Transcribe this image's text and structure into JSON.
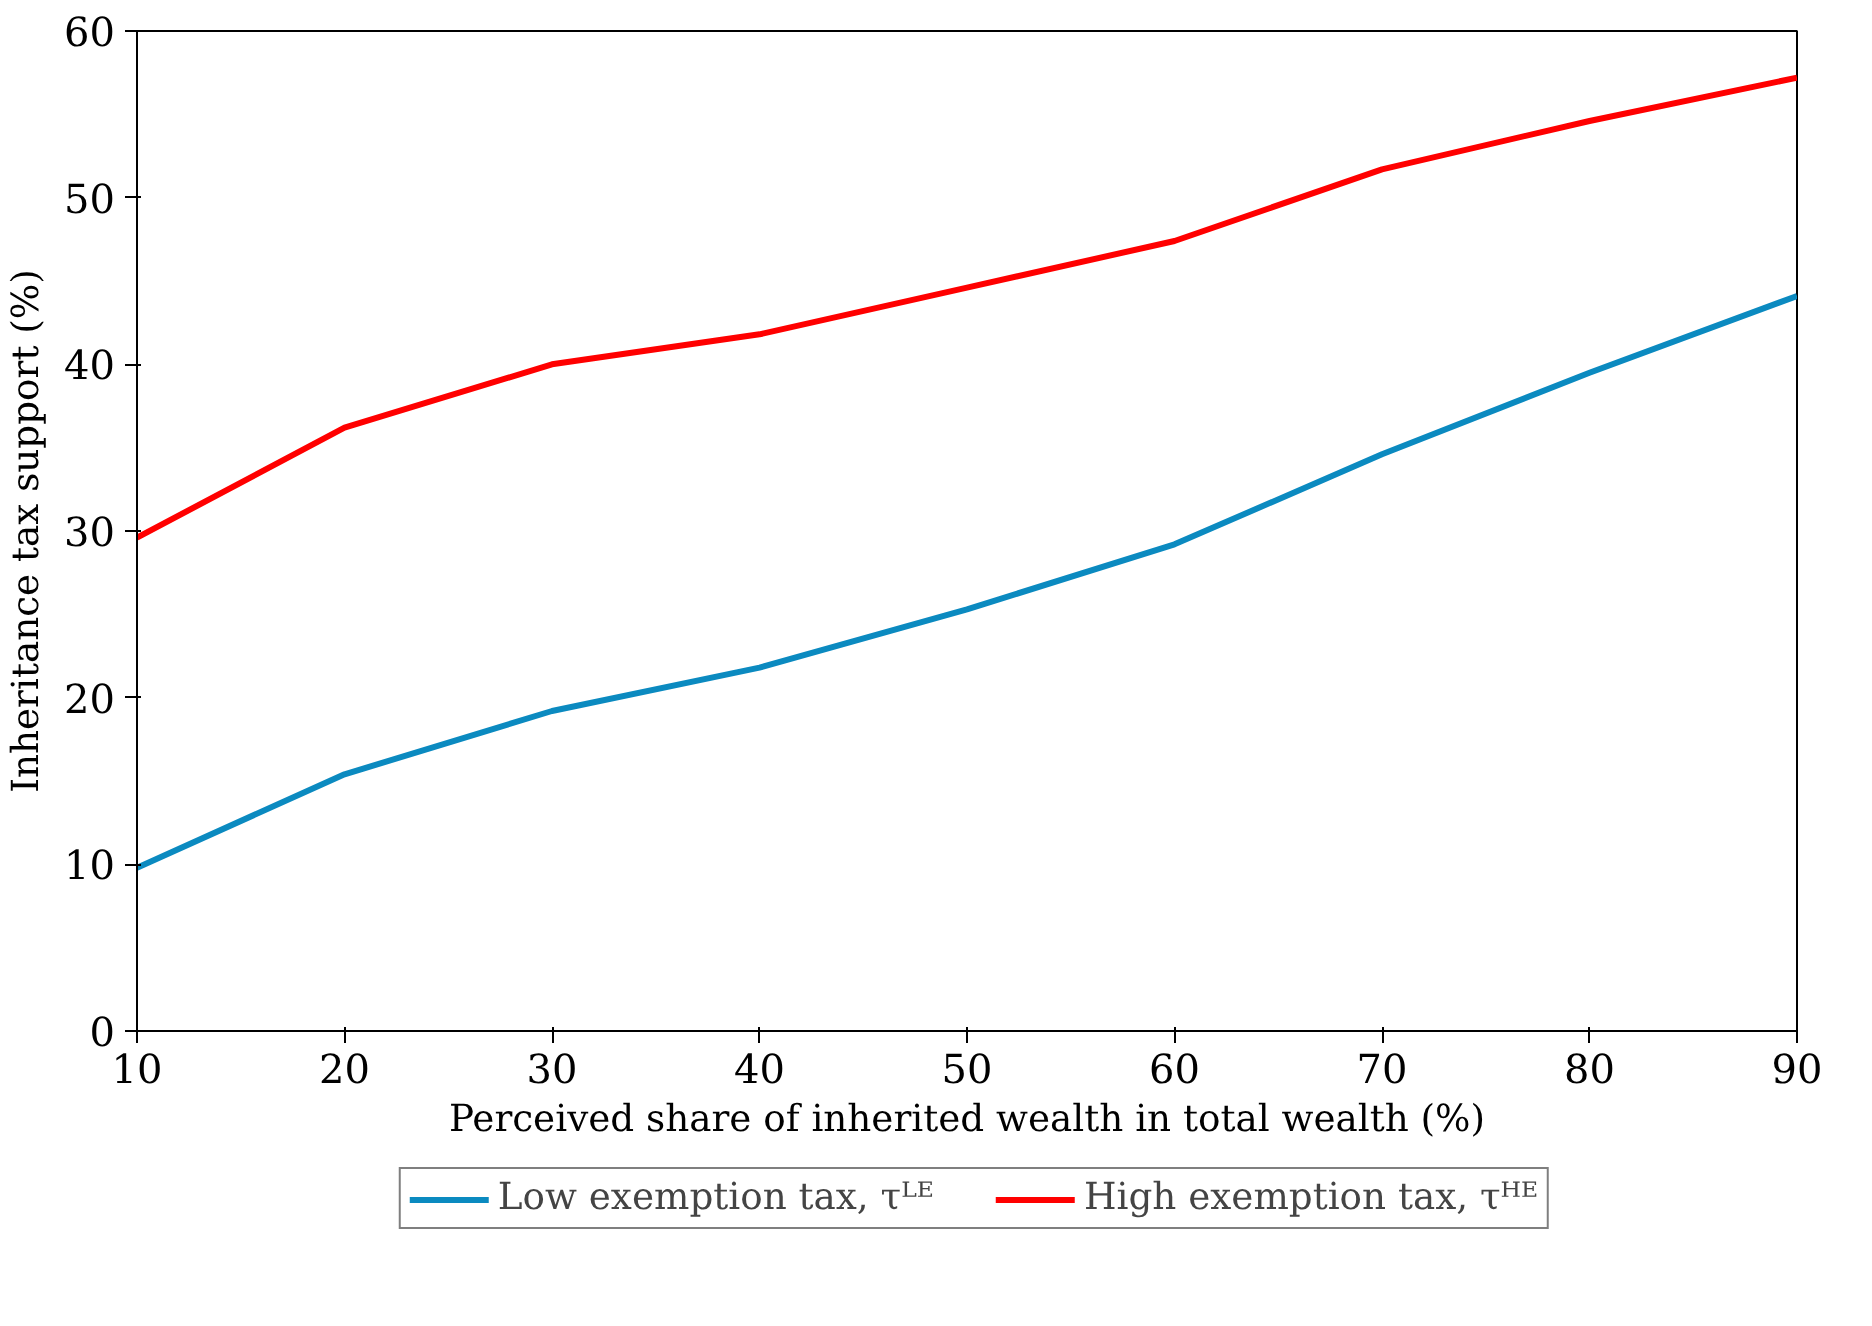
{
  "chart_data": {
    "type": "line",
    "xlabel": "Perceived share of inherited wealth in total wealth (%)",
    "ylabel": "Inheritance tax support (%)",
    "x": [
      10,
      20,
      30,
      40,
      50,
      60,
      70,
      80,
      90
    ],
    "series": [
      {
        "name": "Low exemption tax, τᴸᴱ",
        "color": "#0b8ac0",
        "values": [
          9.8,
          15.4,
          19.2,
          21.8,
          25.3,
          29.2,
          34.6,
          39.5,
          44.1
        ]
      },
      {
        "name": "High exemption tax, τᴴᴱ",
        "color": "#ff0000",
        "values": [
          29.6,
          36.2,
          40.0,
          41.8,
          44.6,
          47.4,
          51.7,
          54.6,
          57.2
        ]
      }
    ],
    "xlim": [
      10,
      90
    ],
    "xticks": [
      10,
      20,
      30,
      40,
      50,
      60,
      70,
      80,
      90
    ],
    "ylim": [
      0,
      60
    ],
    "yticks": [
      0,
      10,
      20,
      30,
      40,
      50,
      60
    ],
    "grid": false,
    "legend": "bottom",
    "line_style": "solid",
    "marker": "none"
  }
}
